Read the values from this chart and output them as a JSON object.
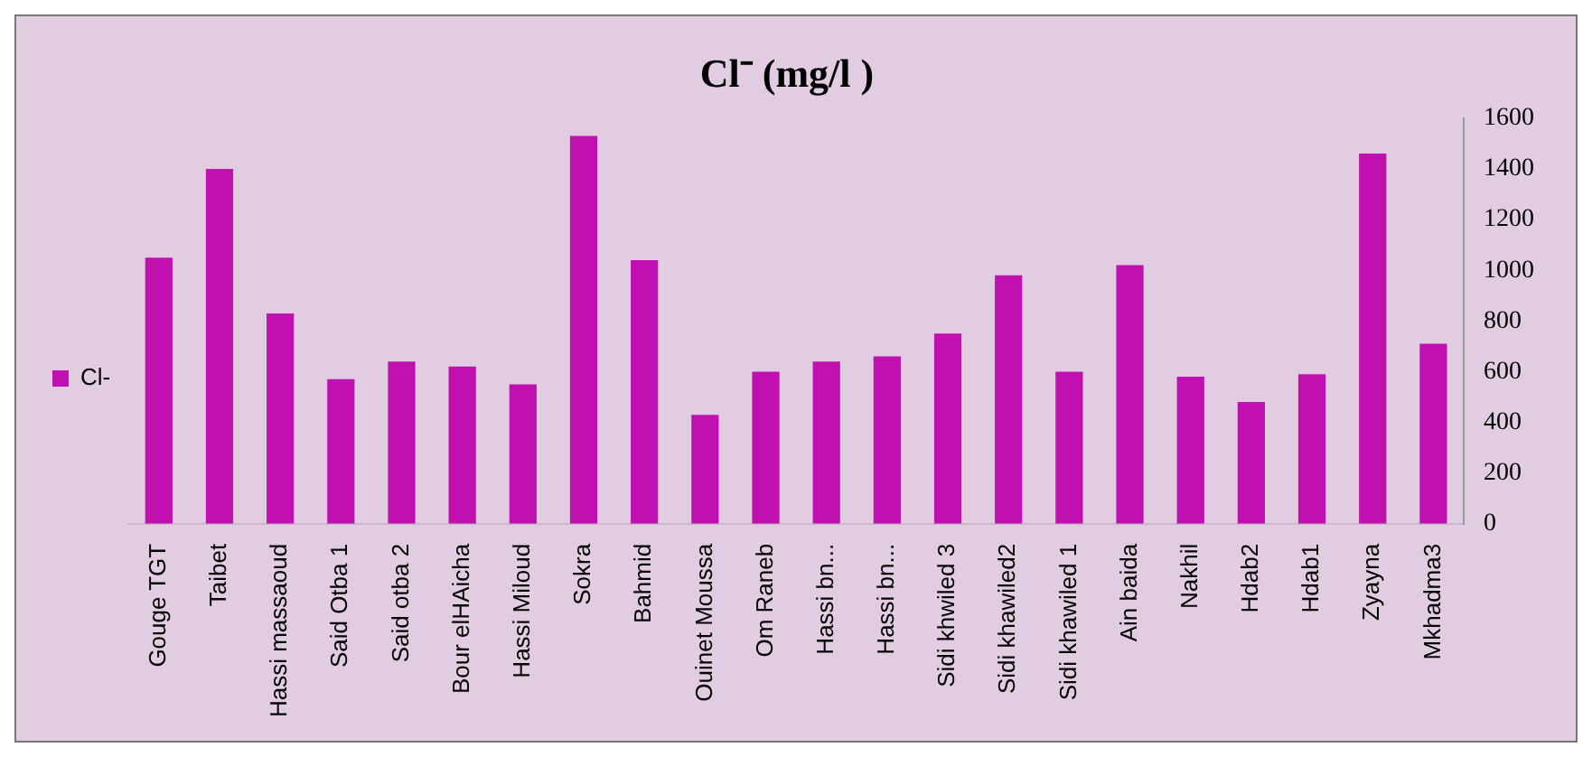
{
  "chart_data": {
    "type": "bar",
    "title": "Cl⁻ (mg/l )",
    "categories": [
      "Gouge TGT",
      "Taibet",
      "Hassi massaoud",
      "Said Otba 1",
      "Said otba 2",
      "Bour elHAicha",
      "Hassi Miloud",
      "Sokra",
      "Bahmid",
      "Ouinet Moussa",
      "Om Raneb",
      "Hassi bn...",
      "Hassi bn...",
      "Sidi khwiled 3",
      "Sidi khawiled2",
      "Sidi khawiled 1",
      "Ain baida",
      "Nakhil",
      "Hdab2",
      "Hdab1",
      "Zyayna",
      "Mkhadma3"
    ],
    "series": [
      {
        "name": "Cl-",
        "color": "#c010b0",
        "values": [
          1050,
          1400,
          830,
          570,
          640,
          620,
          550,
          1530,
          1040,
          430,
          600,
          640,
          660,
          750,
          980,
          600,
          1020,
          580,
          480,
          590,
          1460,
          710
        ]
      }
    ],
    "ylim": [
      0,
      1600
    ],
    "yticks": [
      0,
      200,
      400,
      600,
      800,
      1000,
      1200,
      1400,
      1600
    ],
    "grid": false,
    "legend": "left"
  }
}
